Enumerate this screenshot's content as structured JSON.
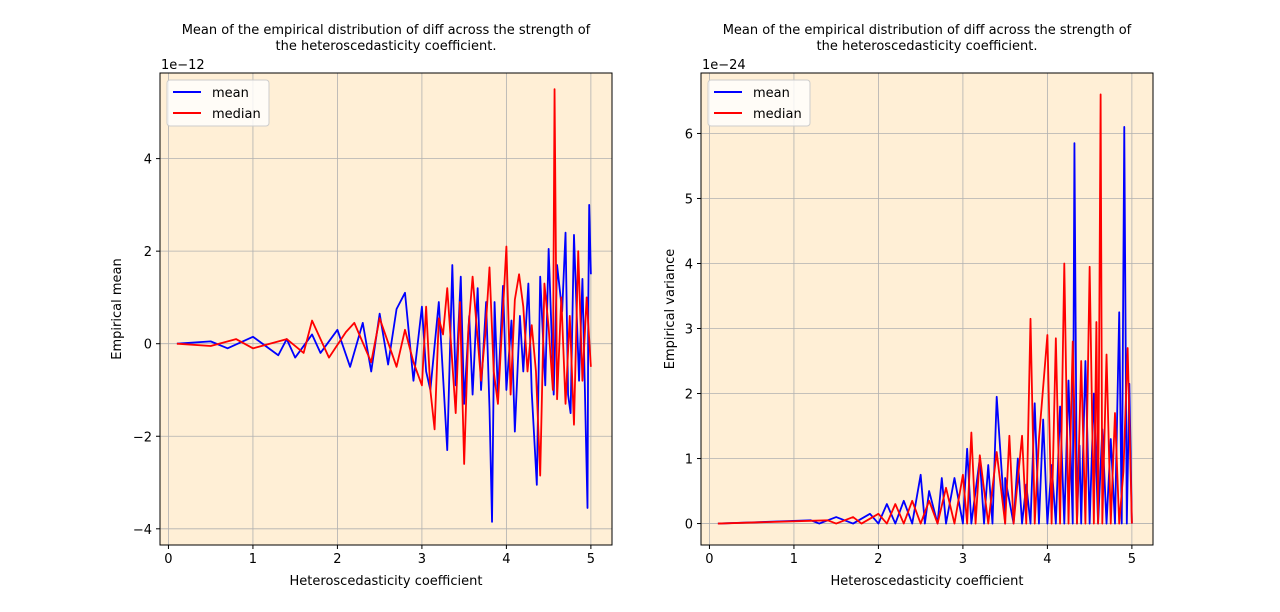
{
  "colors": {
    "background": "#ffffff",
    "axes_face": "#ffefd6",
    "grid": "#b0b0b0",
    "mean": "#0000ff",
    "median": "#ff0000"
  },
  "chart_data": [
    {
      "type": "line",
      "title_line1": "Mean of the empirical distribution of diff across the strength of",
      "title_line2": "the heteroscedasticity coefficient.",
      "xlabel": "Heteroscedasticity coefficient",
      "ylabel": "Empirical mean",
      "offset_text": "1e−12",
      "x_ticks": [
        "0",
        "1",
        "2",
        "3",
        "4",
        "5"
      ],
      "y_ticks": [
        "−4",
        "−2",
        "0",
        "2",
        "4"
      ],
      "xlim": [
        -0.1,
        5.25
      ],
      "ylim": [
        -4.35,
        5.85
      ],
      "grid": true,
      "legend_position": "upper-left",
      "series": [
        {
          "name": "mean",
          "x": [
            0.1,
            0.5,
            0.7,
            1.0,
            1.3,
            1.4,
            1.5,
            1.7,
            1.8,
            2.0,
            2.15,
            2.3,
            2.4,
            2.5,
            2.6,
            2.7,
            2.8,
            2.9,
            3.0,
            3.05,
            3.1,
            3.2,
            3.3,
            3.36,
            3.4,
            3.46,
            3.5,
            3.56,
            3.6,
            3.66,
            3.7,
            3.76,
            3.8,
            3.83,
            3.86,
            3.9,
            3.96,
            4.0,
            4.06,
            4.1,
            4.16,
            4.2,
            4.26,
            4.3,
            4.36,
            4.4,
            4.46,
            4.5,
            4.56,
            4.6,
            4.66,
            4.7,
            4.73,
            4.76,
            4.8,
            4.86,
            4.9,
            4.96,
            4.97,
            4.98,
            5.0
          ],
          "y": [
            0,
            0.05,
            -0.1,
            0.15,
            -0.25,
            0.1,
            -0.3,
            0.2,
            -0.2,
            0.3,
            -0.5,
            0.45,
            -0.6,
            0.65,
            -0.45,
            0.75,
            1.1,
            -0.8,
            0.8,
            -0.6,
            -1.0,
            0.9,
            -2.3,
            1.7,
            -0.9,
            1.45,
            -1.3,
            0.6,
            -1.1,
            1.2,
            -1.0,
            0.9,
            -1.4,
            -3.85,
            0.9,
            -1.1,
            1.25,
            -1.0,
            0.5,
            -1.9,
            0.6,
            -0.6,
            1.3,
            -1.05,
            -3.05,
            1.45,
            -0.9,
            2.05,
            -1.1,
            1.7,
            0.7,
            2.4,
            -1.1,
            -1.5,
            2.35,
            -0.8,
            1.4,
            -3.55,
            1.0,
            3.0,
            1.5
          ]
        },
        {
          "name": "median",
          "x": [
            0.1,
            0.5,
            0.8,
            1.0,
            1.4,
            1.6,
            1.7,
            1.9,
            2.1,
            2.2,
            2.4,
            2.5,
            2.7,
            2.8,
            2.9,
            3.0,
            3.05,
            3.1,
            3.15,
            3.2,
            3.25,
            3.3,
            3.4,
            3.45,
            3.5,
            3.55,
            3.6,
            3.7,
            3.75,
            3.8,
            3.85,
            3.9,
            4.0,
            4.05,
            4.1,
            4.15,
            4.2,
            4.25,
            4.3,
            4.35,
            4.4,
            4.45,
            4.5,
            4.55,
            4.57,
            4.6,
            4.65,
            4.7,
            4.75,
            4.8,
            4.85,
            4.9,
            4.95,
            5.0
          ],
          "y": [
            0,
            -0.05,
            0.1,
            -0.1,
            0.1,
            -0.2,
            0.5,
            -0.3,
            0.25,
            0.45,
            -0.4,
            0.55,
            -0.5,
            0.3,
            -0.4,
            -0.9,
            0.8,
            -1.0,
            -1.85,
            0.55,
            0.2,
            1.2,
            -1.5,
            0.9,
            -2.6,
            0.3,
            1.45,
            -0.8,
            0.2,
            1.65,
            -0.6,
            -1.3,
            2.1,
            -1.1,
            0.95,
            1.5,
            0.8,
            -0.6,
            0.4,
            -0.6,
            -2.85,
            1.3,
            0.35,
            -1.0,
            5.5,
            -1.2,
            1.0,
            -1.3,
            0.6,
            -1.75,
            2.0,
            -0.8,
            1.0,
            -0.5
          ]
        }
      ]
    },
    {
      "type": "line",
      "title_line1": "Mean of the empirical distribution of diff across the strength of",
      "title_line2": "the heteroscedasticity coefficient.",
      "xlabel": "Heteroscedasticity coefficient",
      "ylabel": "Empirical variance",
      "offset_text": "1e−24",
      "x_ticks": [
        "0",
        "1",
        "2",
        "3",
        "4",
        "5"
      ],
      "y_ticks": [
        "0",
        "1",
        "2",
        "3",
        "4",
        "5",
        "6"
      ],
      "xlim": [
        -0.1,
        5.25
      ],
      "ylim": [
        -0.33,
        6.93
      ],
      "grid": true,
      "legend_position": "upper-left",
      "series": [
        {
          "name": "mean",
          "x": [
            0.1,
            1.2,
            1.3,
            1.5,
            1.7,
            1.9,
            2.0,
            2.1,
            2.2,
            2.3,
            2.4,
            2.5,
            2.55,
            2.6,
            2.7,
            2.75,
            2.8,
            2.9,
            3.0,
            3.05,
            3.1,
            3.2,
            3.25,
            3.3,
            3.35,
            3.4,
            3.5,
            3.5,
            3.6,
            3.65,
            3.7,
            3.75,
            3.8,
            3.85,
            3.9,
            3.95,
            4.0,
            4.05,
            4.1,
            4.15,
            4.2,
            4.25,
            4.3,
            4.32,
            4.35,
            4.38,
            4.4,
            4.45,
            4.5,
            4.55,
            4.6,
            4.65,
            4.7,
            4.75,
            4.8,
            4.85,
            4.88,
            4.91,
            4.94,
            4.97,
            5.0
          ],
          "y": [
            0,
            0.05,
            0,
            0.1,
            0,
            0.15,
            0,
            0.3,
            0,
            0.35,
            0,
            0.75,
            0,
            0.5,
            0,
            0.7,
            0,
            0.7,
            0,
            1.15,
            0,
            1.0,
            0,
            0.9,
            0,
            1.95,
            0,
            0.7,
            0,
            1.0,
            0,
            0.6,
            0,
            1.85,
            0,
            1.6,
            0,
            0.9,
            0,
            1.8,
            0,
            2.2,
            0,
            5.85,
            0,
            1.2,
            0,
            2.5,
            0,
            2.0,
            0,
            1.45,
            0,
            1.3,
            0,
            3.25,
            0,
            6.1,
            0,
            2.15,
            0
          ]
        },
        {
          "name": "median",
          "x": [
            0.1,
            1.4,
            1.5,
            1.7,
            1.8,
            2.0,
            2.1,
            2.2,
            2.3,
            2.4,
            2.5,
            2.6,
            2.7,
            2.8,
            2.9,
            3.0,
            3.05,
            3.1,
            3.15,
            3.2,
            3.3,
            3.4,
            3.5,
            3.55,
            3.6,
            3.7,
            3.75,
            3.8,
            3.85,
            3.9,
            4.0,
            4.05,
            4.1,
            4.15,
            4.2,
            4.25,
            4.3,
            4.35,
            4.4,
            4.45,
            4.5,
            4.55,
            4.58,
            4.6,
            4.63,
            4.65,
            4.7,
            4.75,
            4.8,
            4.85,
            4.9,
            4.95,
            5.0
          ],
          "y": [
            0,
            0.05,
            0,
            0.1,
            0,
            0.15,
            0,
            0.3,
            0,
            0.35,
            0,
            0.35,
            0,
            0.55,
            0,
            0.75,
            0,
            1.4,
            0,
            1.05,
            0,
            1.1,
            0,
            1.35,
            0,
            1.35,
            0,
            3.15,
            0,
            1.3,
            2.9,
            0,
            2.85,
            0,
            4.0,
            0,
            2.8,
            0,
            2.5,
            0,
            3.95,
            0,
            3.1,
            0,
            6.6,
            0,
            2.6,
            0,
            1.7,
            0,
            0.8,
            2.7,
            0
          ]
        }
      ]
    }
  ]
}
